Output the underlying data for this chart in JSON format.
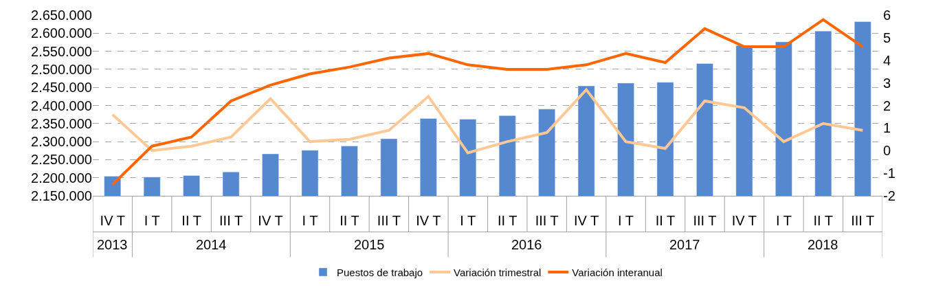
{
  "chart_data": {
    "type": "bar",
    "categories": [
      [
        "2013",
        "IV T"
      ],
      [
        "2014",
        "I T"
      ],
      [
        null,
        "II T"
      ],
      [
        null,
        "III T"
      ],
      [
        null,
        "IV T"
      ],
      [
        "2015",
        "I T"
      ],
      [
        null,
        "II T"
      ],
      [
        null,
        "III T"
      ],
      [
        null,
        "IV T"
      ],
      [
        "2016",
        "I T"
      ],
      [
        null,
        "II T"
      ],
      [
        null,
        "III T"
      ],
      [
        null,
        "IV T"
      ],
      [
        "2017",
        "I T"
      ],
      [
        null,
        "II T"
      ],
      [
        null,
        "III T"
      ],
      [
        null,
        "IV T"
      ],
      [
        "2018",
        "I T"
      ],
      [
        null,
        "II T"
      ],
      [
        null,
        "III T"
      ]
    ],
    "series": [
      {
        "name": "Puestos de trabajo",
        "type": "bar",
        "color": "#5588cf",
        "values": [
          2204000,
          2202000,
          2206000,
          2216000,
          2266000,
          2276000,
          2288000,
          2308000,
          2364000,
          2362000,
          2372000,
          2390000,
          2454000,
          2462000,
          2464000,
          2516000,
          2566000,
          2576000,
          2606000,
          2632000
        ]
      },
      {
        "name": "Variación trimestral",
        "type": "line",
        "axis": "y2",
        "color": "#ffc895",
        "values": [
          1.6,
          0.0,
          0.2,
          0.6,
          2.3,
          0.4,
          0.5,
          0.9,
          2.4,
          -0.1,
          0.4,
          0.8,
          2.7,
          0.4,
          0.1,
          2.2,
          1.9,
          0.4,
          1.2,
          0.9
        ]
      },
      {
        "name": "Variación interanual",
        "type": "line",
        "axis": "y2",
        "color": "#ff6600",
        "values": [
          -1.5,
          0.2,
          0.6,
          2.2,
          2.9,
          3.4,
          3.7,
          4.1,
          4.3,
          3.8,
          3.6,
          3.6,
          3.8,
          4.3,
          3.9,
          5.4,
          4.6,
          4.6,
          5.8,
          4.6
        ]
      }
    ],
    "ylim": [
      2150000,
      2650000
    ],
    "yticks": [
      {
        "value": 2150000,
        "label": "2.150.000"
      },
      {
        "value": 2200000,
        "label": "2.200.000"
      },
      {
        "value": 2250000,
        "label": "2.250.000"
      },
      {
        "value": 2300000,
        "label": "2.300.000"
      },
      {
        "value": 2350000,
        "label": "2.350.000"
      },
      {
        "value": 2400000,
        "label": "2.400.000"
      },
      {
        "value": 2450000,
        "label": "2.450.000"
      },
      {
        "value": 2500000,
        "label": "2.500.000"
      },
      {
        "value": 2550000,
        "label": "2.550.000"
      },
      {
        "value": 2600000,
        "label": "2.600.000"
      },
      {
        "value": 2650000,
        "label": "2.650.000"
      }
    ],
    "y2lim": [
      -2,
      6
    ],
    "y2ticks": [
      -2,
      -1,
      0,
      1,
      2,
      3,
      4,
      5,
      6
    ],
    "grid": "y",
    "legend": "bottom",
    "marker": "none",
    "line_style": "solid"
  }
}
